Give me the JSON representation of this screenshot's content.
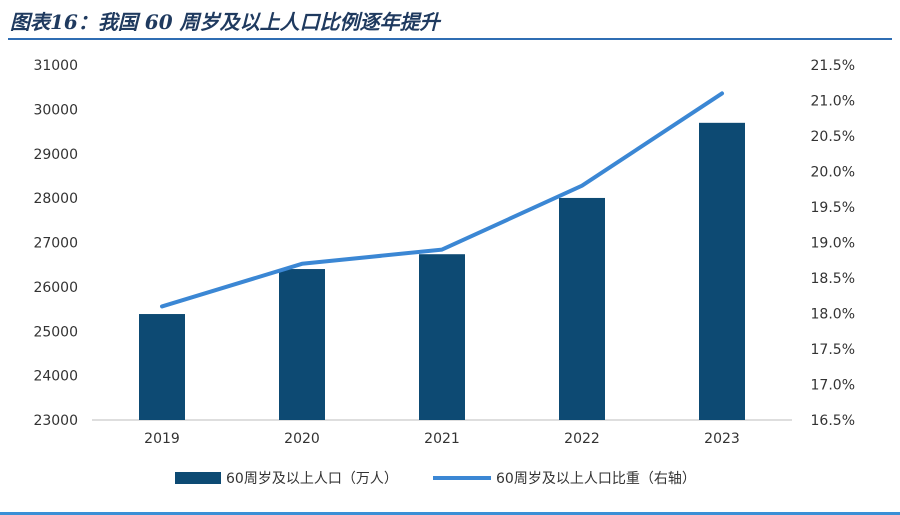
{
  "title": "图表16：我国 60 周岁及以上人口比例逐年提升",
  "colors": {
    "bar": "#0d4a73",
    "line": "#3b87d4",
    "rule": "#2f6db3"
  },
  "chart_data": {
    "type": "bar",
    "categories": [
      "2019",
      "2020",
      "2021",
      "2022",
      "2023"
    ],
    "series": [
      {
        "name": "60周岁及以上人口（万人）",
        "kind": "bar",
        "axis": "left",
        "values": [
          25388,
          26402,
          26736,
          28004,
          29697
        ]
      },
      {
        "name": "60周岁及以上人口比重（右轴）",
        "kind": "line",
        "axis": "right",
        "values": [
          18.1,
          18.7,
          18.9,
          19.8,
          21.1
        ]
      }
    ],
    "y_left": {
      "min": 23000,
      "max": 31000,
      "step": 1000,
      "ticks": [
        "31000",
        "30000",
        "29000",
        "28000",
        "27000",
        "26000",
        "25000",
        "24000",
        "23000"
      ]
    },
    "y_right": {
      "min": 16.5,
      "max": 21.5,
      "step": 0.5,
      "ticks": [
        "21.5%",
        "21.0%",
        "20.5%",
        "20.0%",
        "19.5%",
        "19.0%",
        "18.5%",
        "18.0%",
        "17.5%",
        "17.0%",
        "16.5%"
      ]
    },
    "legend_position": "bottom",
    "grid": false
  }
}
